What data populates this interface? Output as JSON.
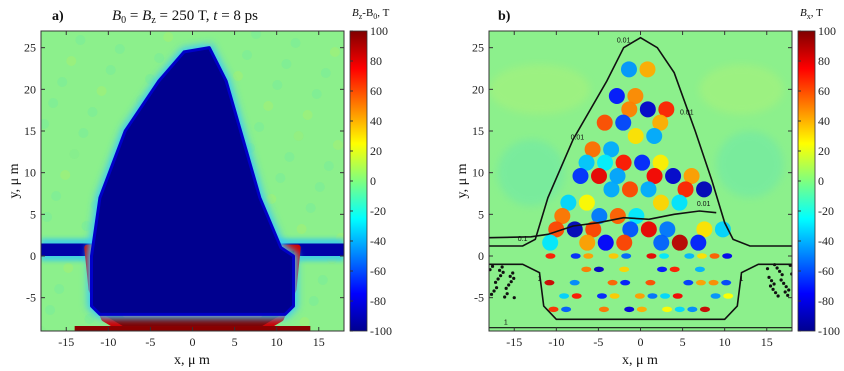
{
  "panels": [
    {
      "id": "a",
      "panel_label": "a)",
      "title": "B₀ =  B_z = 250 T,  t = 8 ps",
      "title_parts": {
        "b0": "B",
        "b0sub": "0",
        "eq": " =  ",
        "bz": "B",
        "bzsub": "z",
        "rest": " = 250 T,  ",
        "t": "t",
        "rest2": " = 8 ps"
      },
      "colorbar_label_parts": {
        "b": "B",
        "sub": "z",
        "mid": "-B",
        "sub2": "0",
        "unit": ", T"
      }
    },
    {
      "id": "b",
      "panel_label": "b)",
      "title": "",
      "colorbar_label_parts": {
        "b": "B",
        "sub": "x",
        "unit": ", T"
      },
      "contour_labels": [
        "0.01",
        "0.01",
        "0.01",
        "0.01",
        "0.1",
        "1",
        "1",
        "1"
      ]
    }
  ],
  "axis_labels": {
    "xlabel": "x, μ m",
    "ylabel": "y, μ m"
  },
  "chart_data": [
    {
      "type": "heatmap",
      "title": "B0 = Bz = 250 T, t = 8 ps",
      "xlabel": "x, μ m",
      "ylabel": "y, μ m",
      "xlim": [
        -18,
        18
      ],
      "ylim": [
        -9,
        27
      ],
      "xticks": [
        -15,
        -10,
        -5,
        0,
        5,
        10,
        15
      ],
      "yticks": [
        -5,
        0,
        5,
        10,
        15,
        20,
        25
      ],
      "colorbar_label": "Bz-B0, T",
      "colorbar_range": [
        -100,
        100
      ],
      "colorbar_ticks": [
        100,
        80,
        60,
        40,
        20,
        0,
        -20,
        -40,
        -60,
        -80,
        -100
      ],
      "colormap": "jet",
      "features": {
        "cavity_outline": [
          [
            -12,
            0
          ],
          [
            -11,
            7
          ],
          [
            -8,
            15
          ],
          [
            -4,
            21
          ],
          [
            -1,
            24.5
          ],
          [
            2,
            25
          ],
          [
            4,
            21
          ],
          [
            6,
            14
          ],
          [
            8,
            7
          ],
          [
            10.5,
            1
          ],
          [
            12,
            0
          ],
          [
            12,
            -6
          ],
          [
            11,
            -7
          ],
          [
            -11,
            -7
          ],
          [
            -12,
            -6
          ]
        ],
        "stripe_band_y": [
          0,
          1.5
        ],
        "compressed_field_arc_value": 100
      }
    },
    {
      "type": "heatmap",
      "xlabel": "x, μ m",
      "ylabel": "y, μ m",
      "xlim": [
        -18,
        18
      ],
      "ylim": [
        -9,
        27
      ],
      "xticks": [
        -15,
        -10,
        -5,
        0,
        5,
        10,
        15
      ],
      "yticks": [
        -5,
        0,
        5,
        10,
        15,
        20,
        25
      ],
      "colorbar_label": "Bx, T",
      "colorbar_range": [
        -100,
        100
      ],
      "colorbar_ticks": [
        100,
        80,
        60,
        40,
        20,
        0,
        -20,
        -40,
        -60,
        -80,
        -100
      ],
      "colormap": "jet",
      "contour_levels": [
        0.01,
        0.1,
        1
      ]
    }
  ]
}
